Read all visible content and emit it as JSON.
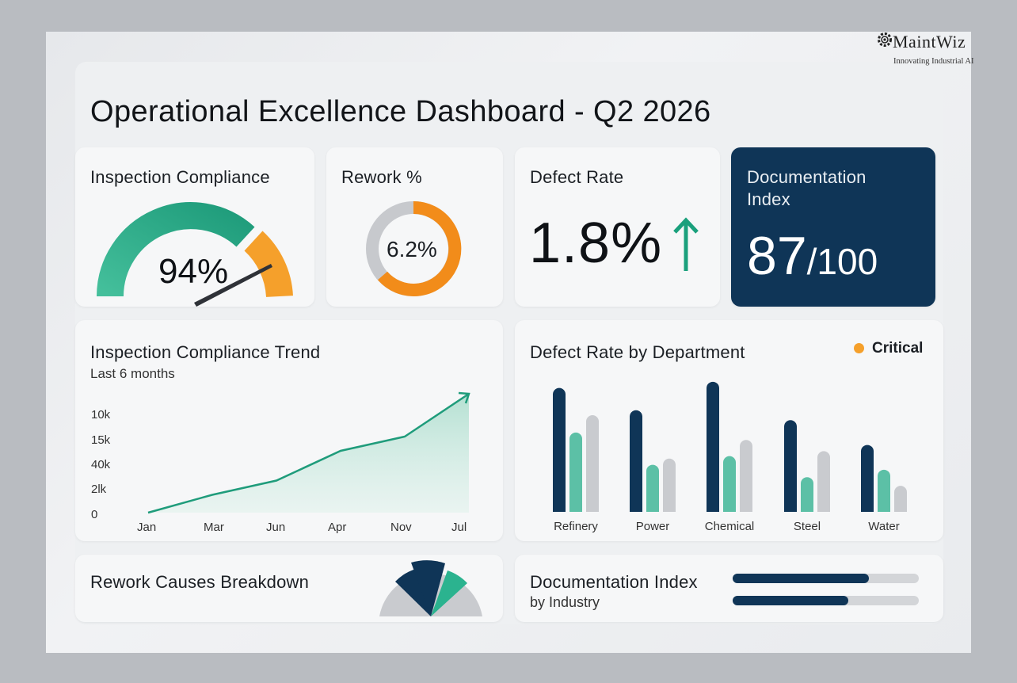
{
  "brand": {
    "name": "MaintWiz",
    "tagline": "Innovating Industrial AI",
    "icon": "gear-icon"
  },
  "page_title": "Operational Excellence Dashboard - Q2 2026",
  "colors": {
    "navy": "#0f3557",
    "teal": "#2bb38f",
    "teal_light": "#5cc0a6",
    "orange": "#f28c1a",
    "gray": "#c9cbcf",
    "gray_light": "#d8dadd"
  },
  "kpis": {
    "inspection_compliance": {
      "title": "Inspection Compliance",
      "value": "94%",
      "fraction": 0.94
    },
    "rework": {
      "title": "Rework %",
      "value": "6.2%"
    },
    "defect_rate": {
      "title": "Defect Rate",
      "value": "1.8%",
      "trend_icon": "arrow-up-icon"
    },
    "documentation_index": {
      "title_line1": "Documentation",
      "title_line2": "Index",
      "value": "87",
      "suffix": "/100"
    }
  },
  "trend": {
    "title": "Inspection Compliance Trend",
    "subtitle": "Last 6 months"
  },
  "dept": {
    "title": "Defect Rate by Department",
    "legend": "Critical"
  },
  "rework_causes": {
    "title": "Rework Causes Breakdown"
  },
  "doc_industry": {
    "title": "Documentation Index",
    "subtitle": "by Industry",
    "bars": [
      0.73,
      0.62
    ]
  },
  "chart_data": [
    {
      "type": "line",
      "title": "Inspection Compliance Trend",
      "subtitle": "Last 6 months",
      "x": [
        "Jan",
        "Mar",
        "Jun",
        "Apr",
        "Nov",
        "Jul"
      ],
      "y_tick_labels": [
        "10k",
        "15k",
        "40k",
        "2lk",
        "0"
      ],
      "series": [
        {
          "values": [
            0,
            0.75,
            1.35,
            2.6,
            3.2,
            5.0
          ]
        }
      ],
      "ylim": [
        0,
        5
      ]
    },
    {
      "type": "bar",
      "title": "Defect Rate by Department",
      "legend": [
        "Critical"
      ],
      "categories": [
        "Refinery",
        "Power",
        "Chemical",
        "Steel",
        "Water"
      ],
      "series": [
        {
          "values": [
            100,
            82,
            105,
            74,
            54
          ]
        },
        {
          "values": [
            64,
            38,
            45,
            28,
            34
          ]
        },
        {
          "values": [
            78,
            43,
            58,
            49,
            21
          ]
        }
      ],
      "ylim": [
        0,
        110
      ]
    }
  ]
}
